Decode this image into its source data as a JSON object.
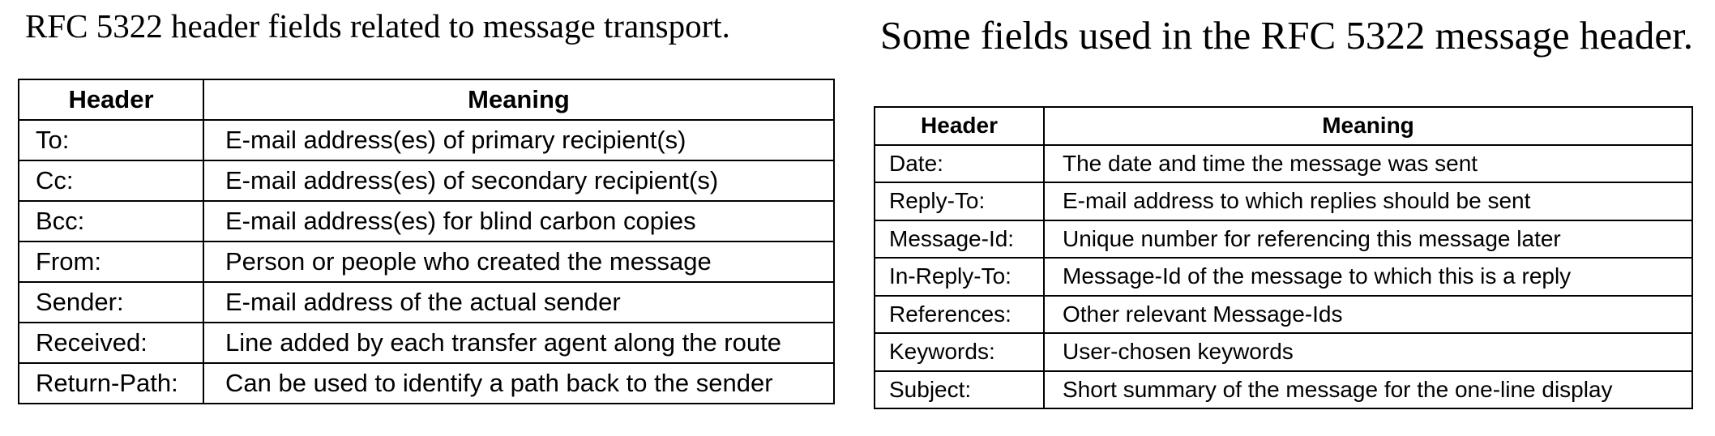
{
  "left": {
    "caption": "RFC 5322 header fields related to message transport.",
    "columns": [
      "Header",
      "Meaning"
    ],
    "rows": [
      [
        "To:",
        "E-mail address(es) of primary recipient(s)"
      ],
      [
        "Cc:",
        "E-mail address(es) of secondary recipient(s)"
      ],
      [
        "Bcc:",
        "E-mail address(es) for blind carbon copies"
      ],
      [
        "From:",
        "Person or people who created the message"
      ],
      [
        "Sender:",
        "E-mail address of the actual sender"
      ],
      [
        "Received:",
        "Line added by each transfer agent along the route"
      ],
      [
        "Return-Path:",
        "Can be used to identify a path back to the sender"
      ]
    ]
  },
  "right": {
    "caption": "Some fields used in the RFC 5322 message header.",
    "columns": [
      "Header",
      "Meaning"
    ],
    "rows": [
      [
        "Date:",
        "The date and time the message was sent"
      ],
      [
        "Reply-To:",
        "E-mail address to which replies should be sent"
      ],
      [
        "Message-Id:",
        "Unique number for referencing this message later"
      ],
      [
        "In-Reply-To:",
        "Message-Id of the message to which this is a reply"
      ],
      [
        "References:",
        "Other relevant Message-Ids"
      ],
      [
        "Keywords:",
        "User-chosen keywords"
      ],
      [
        "Subject:",
        "Short summary of the message for the one-line display"
      ]
    ]
  }
}
